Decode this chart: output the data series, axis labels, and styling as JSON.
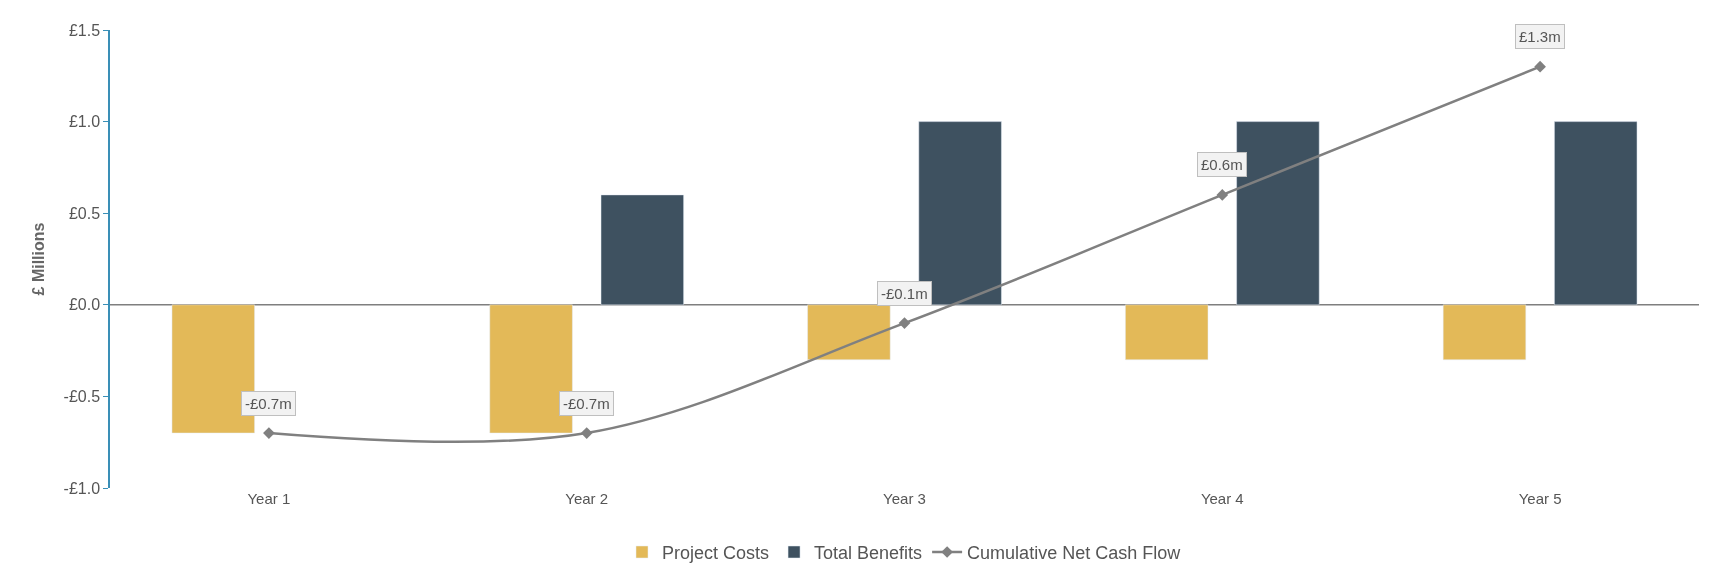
{
  "chart_data": {
    "type": "bar",
    "ylabel": "£ Millions",
    "categories": [
      "Year 1",
      "Year 2",
      "Year 3",
      "Year 4",
      "Year 5"
    ],
    "series": [
      {
        "name": "Project Costs",
        "color": "#e3b958",
        "values": [
          -0.7,
          -0.7,
          -0.3,
          -0.3,
          -0.3
        ]
      },
      {
        "name": "Total Benefits",
        "color": "#3e5160",
        "values": [
          null,
          0.6,
          1.0,
          1.0,
          1.0
        ]
      },
      {
        "name": "Cumulative Net Cash Flow",
        "type": "line",
        "color": "#808080",
        "marker": "diamond",
        "values": [
          -0.7,
          -0.7,
          -0.1,
          0.6,
          1.3
        ],
        "value_labels": [
          "-£0.7m",
          "-£0.7m",
          "-£0.1m",
          "£0.6m",
          "£1.3m"
        ]
      }
    ],
    "ylim": [
      -1.0,
      1.5
    ],
    "yticks": [
      {
        "value": -1.0,
        "label": "-£1.0"
      },
      {
        "value": -0.5,
        "label": "-£0.5"
      },
      {
        "value": 0,
        "label": "£0.0"
      },
      {
        "value": 0.5,
        "label": "£0.5"
      },
      {
        "value": 1.0,
        "label": "£1.0"
      },
      {
        "value": 1.5,
        "label": "£1.5"
      }
    ],
    "ref_lines": [
      {
        "axis": "y",
        "value": 0,
        "color": "#7f7f7f"
      }
    ],
    "legend": "bottom"
  }
}
